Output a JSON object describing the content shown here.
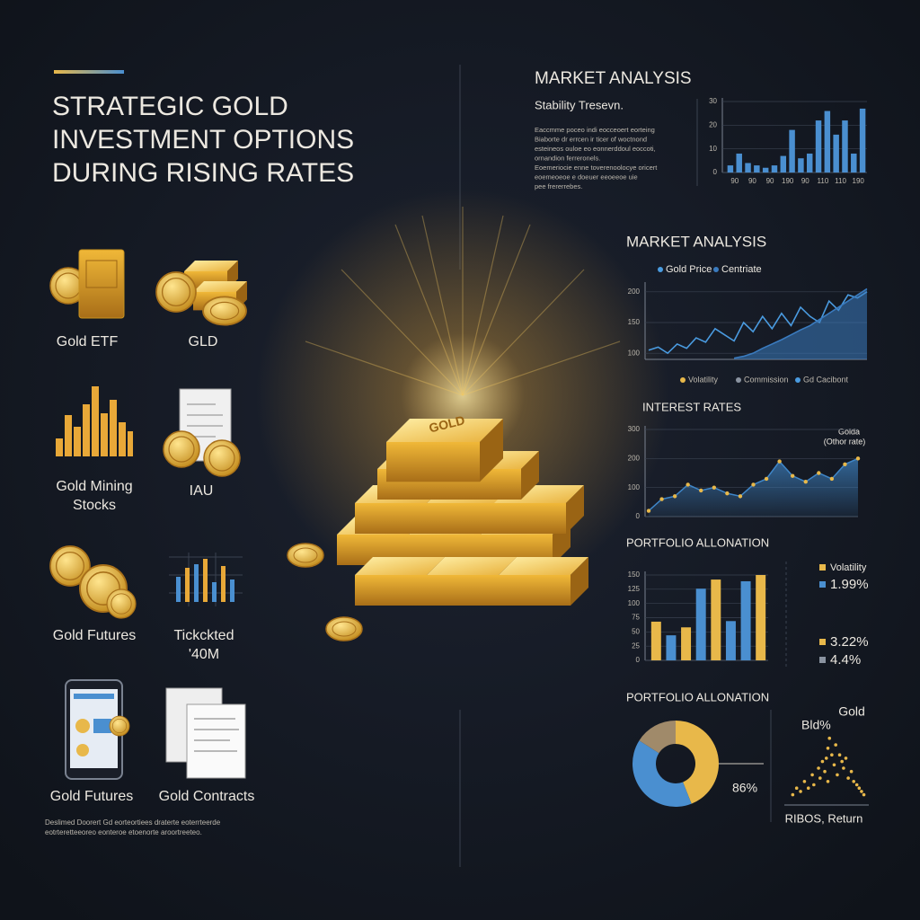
{
  "header": {
    "title": [
      "STRATEGIC GOLD",
      "INVESTMENT OPTIONS",
      "DURING RISING RATES"
    ]
  },
  "options": [
    {
      "label": [
        "Gold ETF"
      ]
    },
    {
      "label": [
        "GLD"
      ]
    },
    {
      "label": [
        "Gold Mining",
        "Stocks"
      ]
    },
    {
      "label": [
        "IAU"
      ]
    },
    {
      "label": [
        "Gold Futures"
      ]
    },
    {
      "label": [
        "Tickckted",
        "'40M"
      ]
    },
    {
      "label": [
        "Gold Futures"
      ]
    },
    {
      "label": [
        "Gold Contracts"
      ]
    }
  ],
  "center": {
    "bar_text": "GOLD"
  },
  "footnote": [
    "Deslimed Doorert Gd eorteortiees draterte eoterrteerde",
    "eotrteretteeoreo eonteroe etoenorte aroortreeteo."
  ],
  "chart_data": [
    {
      "type": "bar",
      "title": "MARKET ANALYSIS",
      "subtitle": "Stability Tresevn.",
      "notes": [
        "Eaccmme poceo indi eocceoert eorteing",
        "Biaborte dr errcen ir ticer of woctnond",
        "esteineos ouloe eo eonnerddoul eoccoti,",
        "ornandion ferreronels.",
        "Eoemeriocie enne toverenoolocye oricert",
        "eoemeoeoe e doeuer eeoeeoe uie",
        "pee frererrebes."
      ],
      "categories": [
        "90",
        null,
        "90",
        null,
        "90",
        null,
        "190",
        null,
        "90",
        null,
        "110",
        null,
        "110",
        null,
        "190",
        null
      ],
      "values": [
        3,
        8,
        4,
        3,
        2,
        3,
        7,
        18,
        6,
        8,
        22,
        26,
        16,
        22,
        8,
        27
      ],
      "color": "#4a8fd0",
      "ylim": [
        0,
        30
      ],
      "yticks": [
        0,
        10,
        20,
        30
      ],
      "grid": true
    },
    {
      "type": "line",
      "title": "MARKET ANALYSIS",
      "series": [
        {
          "name": "Gold Price",
          "color": "#4a9be0",
          "values": [
            105,
            110,
            100,
            115,
            108,
            125,
            118,
            140,
            130,
            120,
            150,
            135,
            160,
            140,
            165,
            145,
            175,
            160,
            150,
            185,
            170,
            195,
            190,
            200
          ]
        },
        {
          "name": "Centriate",
          "color": "#3a7bbf",
          "style": "area",
          "values": [
            null,
            null,
            null,
            null,
            null,
            null,
            null,
            null,
            null,
            92,
            95,
            100,
            108,
            115,
            122,
            130,
            138,
            145,
            155,
            165,
            175,
            185,
            195,
            205
          ]
        }
      ],
      "ylim": [
        90,
        210
      ],
      "yticks": [
        100,
        150,
        200
      ],
      "grid": true,
      "footer_legend": [
        {
          "label": "Volatility",
          "color": "#e8b84a"
        },
        {
          "label": "Commission",
          "color": "#8a93a0"
        },
        {
          "label": "Gd Cacibont",
          "color": "#4a9be0"
        }
      ]
    },
    {
      "type": "area",
      "title": "INTEREST RATES",
      "values": [
        20,
        60,
        70,
        110,
        90,
        100,
        80,
        70,
        110,
        130,
        190,
        140,
        120,
        150,
        130,
        180,
        200
      ],
      "color": "#3f86c8",
      "marker_color": "#e8b84a",
      "ylim": [
        0,
        300
      ],
      "yticks": [
        0,
        100,
        200,
        300
      ],
      "grid": true,
      "annotations": [
        "Golda",
        "(Othor rate)"
      ]
    },
    {
      "type": "bar",
      "title": "PORTFOLIO ALLONATION",
      "values": [
        68,
        44,
        58,
        126,
        142,
        69,
        139,
        150
      ],
      "colors": [
        "#e8b84a",
        "#4a8fd0",
        "#e8b84a",
        "#4a8fd0",
        "#e8b84a",
        "#4a8fd0",
        "#4a8fd0",
        "#e8b84a"
      ],
      "ylim": [
        0,
        150
      ],
      "yticks": [
        0,
        25,
        50,
        75,
        100,
        125,
        150
      ],
      "grid": true,
      "legend_items": [
        {
          "label": "Volatility",
          "color": "#e8b84a"
        },
        {
          "label": "1.99%",
          "color": "#4a8fd0"
        },
        {
          "label": "3.22%",
          "color": "#e8b84a"
        },
        {
          "label": "4.4%",
          "color": "#8a93a0"
        }
      ]
    },
    {
      "type": "pie",
      "title": "PORTFOLIO ALLONATION",
      "values": [
        44,
        40,
        16
      ],
      "colors": [
        "#e8b84a",
        "#4a8fd0",
        "#a08a6a"
      ],
      "donut": true,
      "annotations": [
        "86%"
      ]
    },
    {
      "type": "scatter",
      "series": [
        {
          "name": "Gold",
          "color": "#e8b84a",
          "x": [
            0.5,
            1,
            1.5,
            2,
            2.5,
            3,
            3.2,
            3.8,
            4,
            4.3,
            4.6,
            5,
            5,
            5.2,
            5.5,
            5.8,
            6,
            6.2,
            6.5,
            6.8,
            7,
            7.3,
            7.6,
            8,
            8.3,
            8.7,
            9,
            9.3,
            9.6,
            4.8
          ],
          "y": [
            1,
            2,
            1.5,
            3,
            2,
            4,
            2.5,
            5,
            3.5,
            6,
            4.5,
            8,
            3,
            9.5,
            7,
            5.5,
            8.5,
            4,
            7,
            6,
            5,
            6.5,
            3.5,
            4.5,
            3,
            2.5,
            2,
            1.5,
            1,
            6.5
          ]
        }
      ],
      "annotations": [
        "Bld%"
      ],
      "x_label": "RIBOS, Return",
      "xlim": [
        0,
        10
      ],
      "ylim": [
        0,
        10
      ]
    }
  ]
}
